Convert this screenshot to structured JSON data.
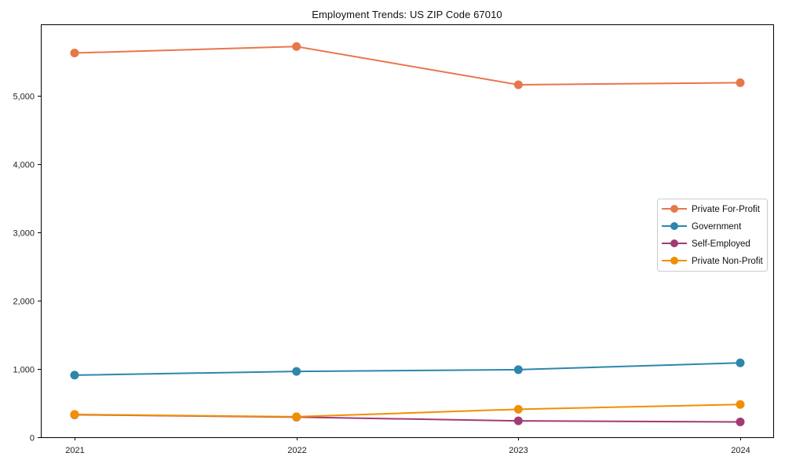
{
  "title": "Employment Trends: US ZIP Code 67010",
  "chart_data": {
    "type": "line",
    "title": "Employment Trends: US ZIP Code 67010",
    "xlabel": "",
    "ylabel": "",
    "categories": [
      "2021",
      "2022",
      "2023",
      "2024"
    ],
    "x": [
      2021,
      2022,
      2023,
      2024
    ],
    "series": [
      {
        "name": "Private For-Profit",
        "color": "#E8764B",
        "values": [
          5630,
          5725,
          5165,
          5195
        ]
      },
      {
        "name": "Government",
        "color": "#2E86AB",
        "values": [
          910,
          965,
          990,
          1090
        ]
      },
      {
        "name": "Self-Employed",
        "color": "#A23B72",
        "values": [
          330,
          295,
          240,
          225
        ]
      },
      {
        "name": "Private Non-Profit",
        "color": "#F18F01",
        "values": [
          335,
          300,
          410,
          480
        ]
      }
    ],
    "ylim": [
      0,
      6050
    ],
    "yticks": [
      0,
      1000,
      2000,
      3000,
      4000,
      5000
    ],
    "ytick_labels": [
      "0",
      "1,000",
      "2,000",
      "3,000",
      "4,000",
      "5,000"
    ],
    "grid": false,
    "legend_position": "right-middle",
    "marker": "circle",
    "axis_color": "#000000",
    "tick_label_color": "#222222",
    "legend_border_color": "#cccccc",
    "legend_background": "#ffffff"
  }
}
